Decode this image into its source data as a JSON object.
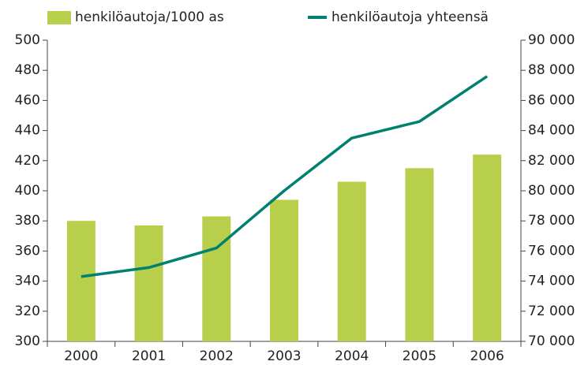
{
  "chart_data": {
    "type": "bar-line",
    "categories": [
      "2000",
      "2001",
      "2002",
      "2003",
      "2004",
      "2005",
      "2006"
    ],
    "series": [
      {
        "name": "henkilöautoja/1000 as",
        "color": "#b8cf4c",
        "type": "bar",
        "axis": "y",
        "values": [
          380,
          377,
          383,
          394,
          406,
          415,
          424
        ]
      },
      {
        "name": "henkilöautoja yhteensä",
        "color": "#00806e",
        "type": "line",
        "axis": "y2",
        "values": [
          74300,
          74900,
          76200,
          80000,
          83500,
          84600,
          87600
        ]
      }
    ],
    "ylim": [
      300,
      500
    ],
    "yticks": [
      300,
      320,
      340,
      360,
      380,
      400,
      420,
      440,
      460,
      480,
      500
    ],
    "y2lim": [
      70000,
      90000
    ],
    "y2ticks": [
      {
        "value": 70000,
        "label": "70 000"
      },
      {
        "value": 72000,
        "label": "72 000"
      },
      {
        "value": 74000,
        "label": "74 000"
      },
      {
        "value": 76000,
        "label": "76 000"
      },
      {
        "value": 78000,
        "label": "78 000"
      },
      {
        "value": 80000,
        "label": "80 000"
      },
      {
        "value": 82000,
        "label": "82 000"
      },
      {
        "value": 84000,
        "label": "84 000"
      },
      {
        "value": 86000,
        "label": "86 000"
      },
      {
        "value": 88000,
        "label": "88 000"
      },
      {
        "value": 90000,
        "label": "90 000"
      }
    ],
    "legend": "top",
    "grid": false
  }
}
